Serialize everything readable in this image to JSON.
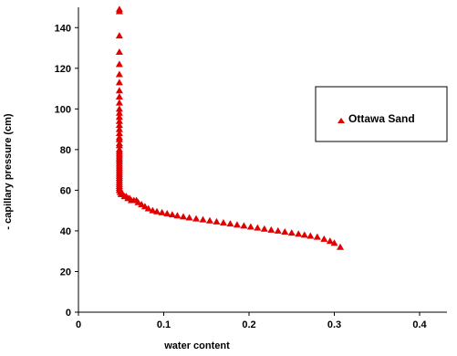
{
  "chart_data": {
    "type": "scatter",
    "xlabel": "water content",
    "ylabel": "- capillary pressure (cm)",
    "xlim": [
      0,
      0.4
    ],
    "ylim": [
      0,
      150
    ],
    "xticks": [
      "0",
      "0.1",
      "0.2",
      "0.3",
      "0.4"
    ],
    "yticks": [
      "0",
      "20",
      "40",
      "60",
      "80",
      "100",
      "120",
      "140"
    ],
    "xtick_values": [
      0,
      0.1,
      0.2,
      0.3,
      0.4
    ],
    "ytick_values": [
      0,
      20,
      40,
      60,
      80,
      100,
      120,
      140
    ],
    "grid": false,
    "legend_position": "right",
    "series": [
      {
        "name": "Ottawa Sand",
        "color": "#e00000",
        "marker": "triangle",
        "x": [
          0.048,
          0.048,
          0.048,
          0.048,
          0.048,
          0.048,
          0.048,
          0.048,
          0.048,
          0.048,
          0.048,
          0.048,
          0.048,
          0.048,
          0.048,
          0.048,
          0.048,
          0.048,
          0.048,
          0.048,
          0.048,
          0.048,
          0.048,
          0.048,
          0.048,
          0.048,
          0.048,
          0.048,
          0.048,
          0.048,
          0.048,
          0.048,
          0.048,
          0.048,
          0.048,
          0.048,
          0.048,
          0.048,
          0.048,
          0.048,
          0.048,
          0.048,
          0.049,
          0.049,
          0.05,
          0.052,
          0.054,
          0.056,
          0.058,
          0.06,
          0.062,
          0.065,
          0.068,
          0.07,
          0.074,
          0.078,
          0.082,
          0.087,
          0.092,
          0.098,
          0.104,
          0.11,
          0.116,
          0.123,
          0.13,
          0.138,
          0.146,
          0.154,
          0.162,
          0.17,
          0.178,
          0.186,
          0.194,
          0.202,
          0.21,
          0.218,
          0.226,
          0.234,
          0.242,
          0.25,
          0.258,
          0.265,
          0.272,
          0.28,
          0.288,
          0.295,
          0.3,
          0.307
        ],
        "y": [
          149,
          148,
          136,
          128,
          122,
          117,
          113,
          109,
          106,
          103,
          100,
          98,
          96,
          94,
          92,
          90,
          88,
          86,
          85,
          83,
          82,
          80,
          79,
          78,
          77,
          76,
          75,
          74,
          73,
          72,
          71,
          70,
          69,
          68,
          67,
          66,
          65,
          64,
          63,
          62,
          61,
          60,
          60,
          59,
          58,
          58,
          57,
          57,
          56,
          56,
          55,
          55,
          55,
          54,
          53,
          52,
          51,
          50,
          49.5,
          49,
          48.5,
          48,
          47.5,
          47,
          46.5,
          46,
          45.5,
          45,
          44.5,
          44,
          43.5,
          43,
          42.5,
          42,
          41.5,
          41,
          40.5,
          40,
          39.5,
          39,
          38.5,
          38,
          37.5,
          37,
          36,
          35,
          34,
          32
        ]
      }
    ]
  }
}
